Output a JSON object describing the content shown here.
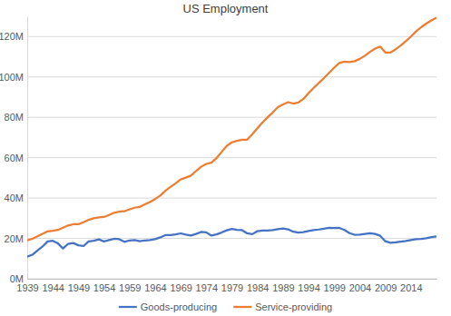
{
  "chart_data": {
    "type": "line",
    "title": "US Employment",
    "x": [
      1939,
      1940,
      1941,
      1942,
      1943,
      1944,
      1945,
      1946,
      1947,
      1948,
      1949,
      1950,
      1951,
      1952,
      1953,
      1954,
      1955,
      1956,
      1957,
      1958,
      1959,
      1960,
      1961,
      1962,
      1963,
      1964,
      1965,
      1966,
      1967,
      1968,
      1969,
      1970,
      1971,
      1972,
      1973,
      1974,
      1975,
      1976,
      1977,
      1978,
      1979,
      1980,
      1981,
      1982,
      1983,
      1984,
      1985,
      1986,
      1987,
      1988,
      1989,
      1990,
      1991,
      1992,
      1993,
      1994,
      1995,
      1996,
      1997,
      1998,
      1999,
      2000,
      2001,
      2002,
      2003,
      2004,
      2005,
      2006,
      2007,
      2008,
      2009,
      2010,
      2011,
      2012,
      2013,
      2014,
      2015,
      2016,
      2017,
      2018,
      2019
    ],
    "series": [
      {
        "name": "Goods-producing",
        "color": "#4472c4",
        "values": [
          10900000,
          11900000,
          14000000,
          16000000,
          18500000,
          18800000,
          17500000,
          15000000,
          17300000,
          17700000,
          16600000,
          16200000,
          18500000,
          18800000,
          19500000,
          18500000,
          19200000,
          19800000,
          19600000,
          18300000,
          19000000,
          19200000,
          18600000,
          19000000,
          19200000,
          19600000,
          20500000,
          21600000,
          21600000,
          22000000,
          22500000,
          21900000,
          21400000,
          22200000,
          23200000,
          23000000,
          21400000,
          22000000,
          22900000,
          24000000,
          24700000,
          24200000,
          24100000,
          22500000,
          22100000,
          23600000,
          23900000,
          23900000,
          24100000,
          24600000,
          24900000,
          24500000,
          23300000,
          22900000,
          23100000,
          23700000,
          24100000,
          24400000,
          24800000,
          25200000,
          25100000,
          25200000,
          24200000,
          22600000,
          21800000,
          21900000,
          22200000,
          22500000,
          22200000,
          21300000,
          18600000,
          17800000,
          18000000,
          18400000,
          18700000,
          19200000,
          19600000,
          19700000,
          20100000,
          20600000,
          21000000
        ]
      },
      {
        "name": "Service-providing",
        "color": "#ed7d31",
        "values": [
          19000000,
          19800000,
          21000000,
          22300000,
          23500000,
          23800000,
          24200000,
          25300000,
          26400000,
          27000000,
          27000000,
          28000000,
          29200000,
          30000000,
          30400000,
          30600000,
          31600000,
          32700000,
          33300000,
          33400000,
          34400000,
          35200000,
          35600000,
          36900000,
          38000000,
          39500000,
          41200000,
          43600000,
          45500000,
          47300000,
          49200000,
          50100000,
          51100000,
          53400000,
          55500000,
          56900000,
          57500000,
          59800000,
          62800000,
          65800000,
          67600000,
          68300000,
          68900000,
          68900000,
          71600000,
          74600000,
          77500000,
          80000000,
          82400000,
          85000000,
          86400000,
          87500000,
          86800000,
          87300000,
          89100000,
          92000000,
          94600000,
          97000000,
          99400000,
          102000000,
          104600000,
          106900000,
          107600000,
          107300000,
          107800000,
          108900000,
          110500000,
          112400000,
          114000000,
          115000000,
          112100000,
          112100000,
          113600000,
          115600000,
          117700000,
          120000000,
          122500000,
          124600000,
          126400000,
          128000000,
          129300000
        ]
      }
    ],
    "xlim": [
      1939,
      2019
    ],
    "xticks": [
      1939,
      1944,
      1949,
      1954,
      1959,
      1964,
      1969,
      1974,
      1979,
      1984,
      1989,
      1994,
      1999,
      2004,
      2009,
      2014
    ],
    "ylim": [
      0,
      130000000
    ],
    "yticks": [
      {
        "value": 0,
        "label": "0M"
      },
      {
        "value": 20000000,
        "label": "20M"
      },
      {
        "value": 40000000,
        "label": "40M"
      },
      {
        "value": 60000000,
        "label": "60M"
      },
      {
        "value": 80000000,
        "label": "80M"
      },
      {
        "value": 100000000,
        "label": "100M"
      },
      {
        "value": 120000000,
        "label": "120M"
      }
    ],
    "grid": true,
    "legend": "bottom"
  }
}
